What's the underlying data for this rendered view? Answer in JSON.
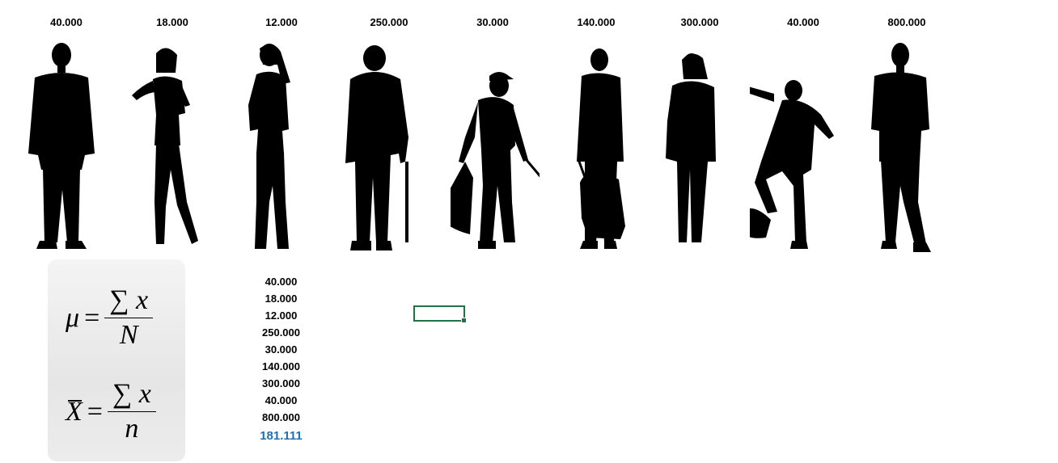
{
  "people": [
    {
      "income": "40.000",
      "icon": "businessman-silhouette-icon"
    },
    {
      "income": "18.000",
      "icon": "young-woman-silhouette-icon"
    },
    {
      "income": "12.000",
      "icon": "woman-silhouette-icon"
    },
    {
      "income": "250.000",
      "icon": "elderly-man-cane-silhouette-icon"
    },
    {
      "income": "30.000",
      "icon": "trash-collector-silhouette-icon"
    },
    {
      "income": "140.000",
      "icon": "traveler-luggage-silhouette-icon"
    },
    {
      "income": "300.000",
      "icon": "woman-standing-silhouette-icon"
    },
    {
      "income": "40.000",
      "icon": "skateboarder-silhouette-icon"
    },
    {
      "income": "800.000",
      "icon": "man-standing-silhouette-icon"
    }
  ],
  "formulas": {
    "population": {
      "lhs": "μ",
      "equals": "=",
      "sigma": "∑",
      "var": "x",
      "denominator": "N"
    },
    "sample": {
      "lhs": "X",
      "equals": "=",
      "sigma": "∑",
      "var": "x",
      "denominator": "n"
    }
  },
  "values_list": [
    "40.000",
    "18.000",
    "12.000",
    "250.000",
    "30.000",
    "140.000",
    "300.000",
    "40.000",
    "800.000"
  ],
  "mean": "181.111",
  "colors": {
    "mean_text": "#1f6fb2",
    "cell_cursor": "#217346"
  }
}
